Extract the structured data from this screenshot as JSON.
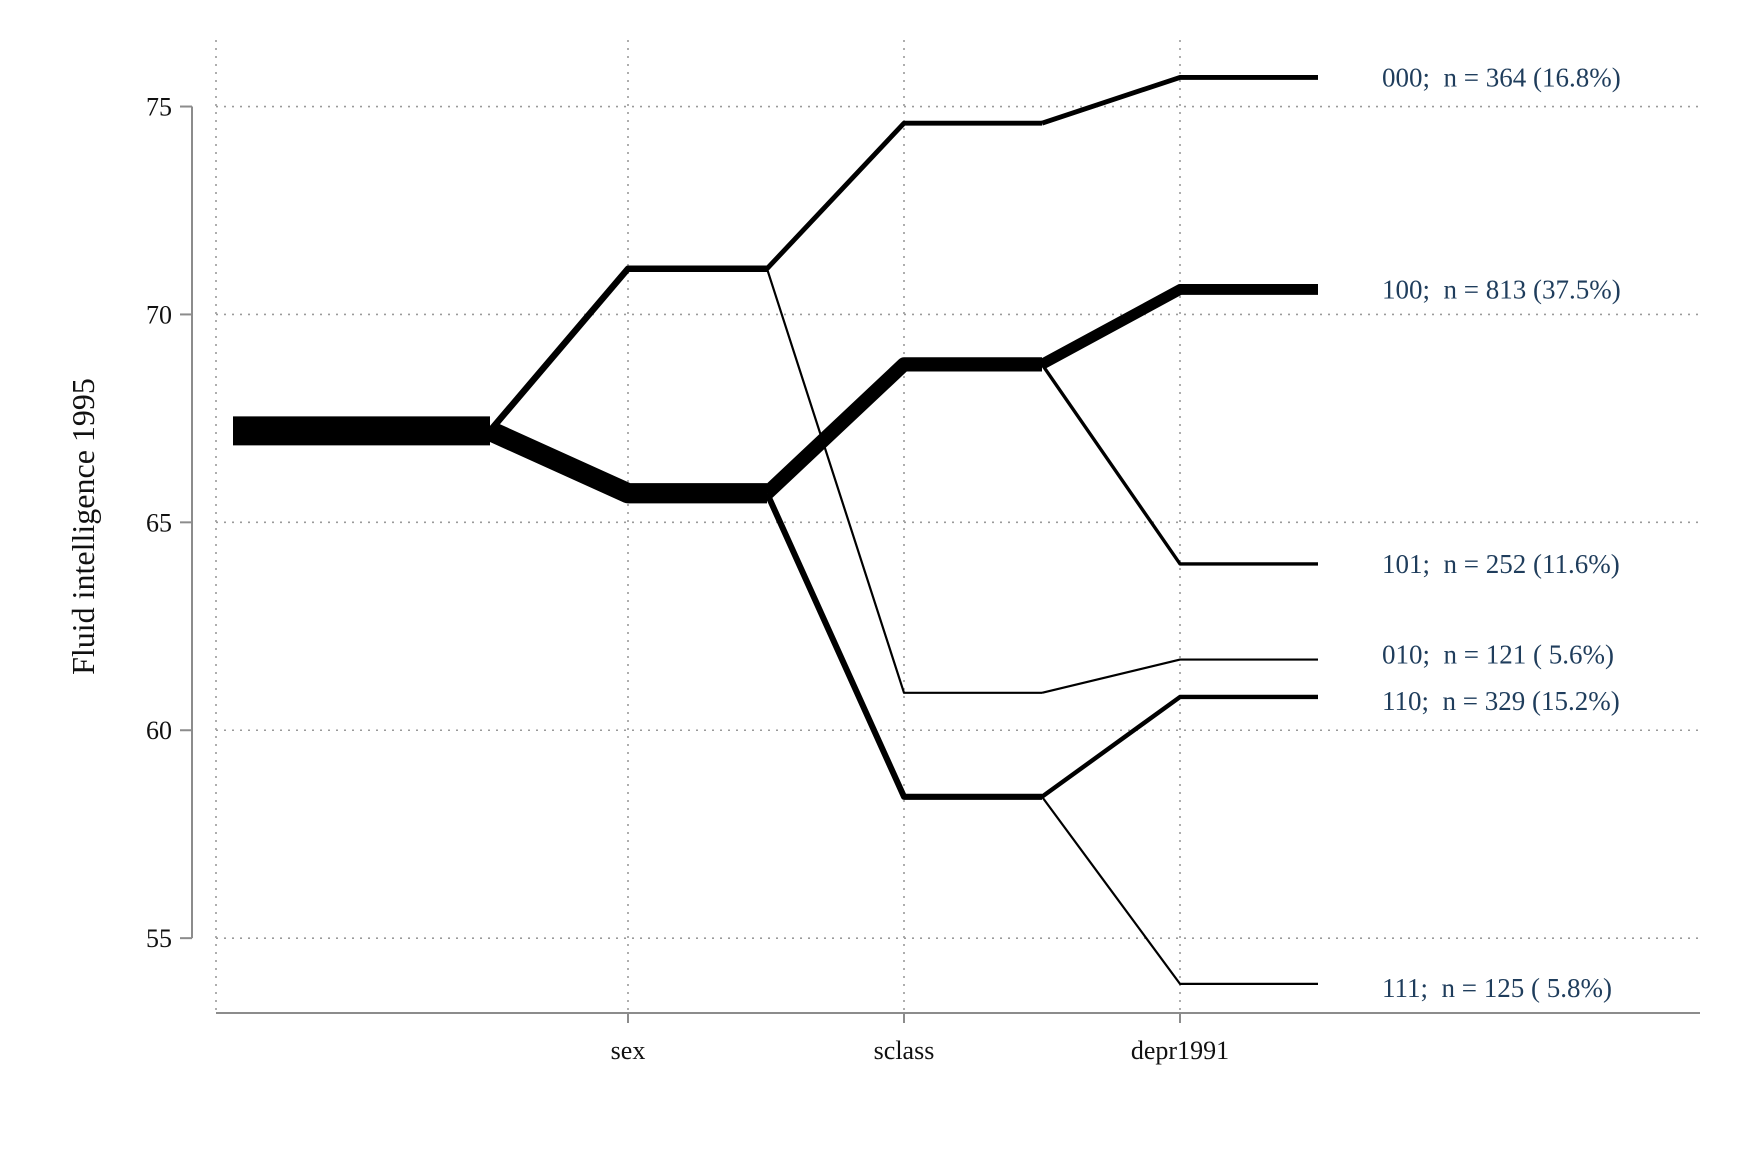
{
  "chart_data": {
    "type": "line",
    "ylabel": "Fluid intelligence 1995",
    "ylim": [
      53.2,
      76.6
    ],
    "yticks": [
      55,
      60,
      65,
      70,
      75
    ],
    "categories": [
      "sex",
      "sclass",
      "depr1991"
    ],
    "grid": true,
    "root_value": 67.2,
    "root_weight": 2168,
    "nodes": [
      {
        "id": "0",
        "parent": "root",
        "level": 1,
        "value": 71.1,
        "n": 485
      },
      {
        "id": "1",
        "parent": "root",
        "level": 1,
        "value": 65.7,
        "n": 1519
      },
      {
        "id": "00",
        "parent": "0",
        "level": 2,
        "value": 74.6,
        "n": 364
      },
      {
        "id": "01",
        "parent": "0",
        "level": 2,
        "value": 60.9,
        "n": 121
      },
      {
        "id": "10",
        "parent": "1",
        "level": 2,
        "value": 68.8,
        "n": 1065
      },
      {
        "id": "11",
        "parent": "1",
        "level": 2,
        "value": 58.4,
        "n": 454
      },
      {
        "id": "000",
        "parent": "00",
        "level": 3,
        "value": 75.7,
        "n": 364
      },
      {
        "id": "010",
        "parent": "01",
        "level": 3,
        "value": 61.7,
        "n": 121
      },
      {
        "id": "100",
        "parent": "10",
        "level": 3,
        "value": 70.6,
        "n": 813
      },
      {
        "id": "101",
        "parent": "10",
        "level": 3,
        "value": 64.0,
        "n": 252
      },
      {
        "id": "110",
        "parent": "11",
        "level": 3,
        "value": 60.8,
        "n": 329
      },
      {
        "id": "111",
        "parent": "11",
        "level": 3,
        "value": 53.9,
        "n": 125
      }
    ],
    "end_labels": [
      {
        "id": "000",
        "text": "000;  n = 364 (16.8%)"
      },
      {
        "id": "100",
        "text": "100;  n = 813 (37.5%)"
      },
      {
        "id": "101",
        "text": "101;  n = 252 (11.6%)"
      },
      {
        "id": "010",
        "text": "010;  n = 121 ( 5.6%)"
      },
      {
        "id": "110",
        "text": "110;  n = 329 (15.2%)"
      },
      {
        "id": "111",
        "text": "111;  n = 125 ( 5.8%)"
      }
    ]
  }
}
